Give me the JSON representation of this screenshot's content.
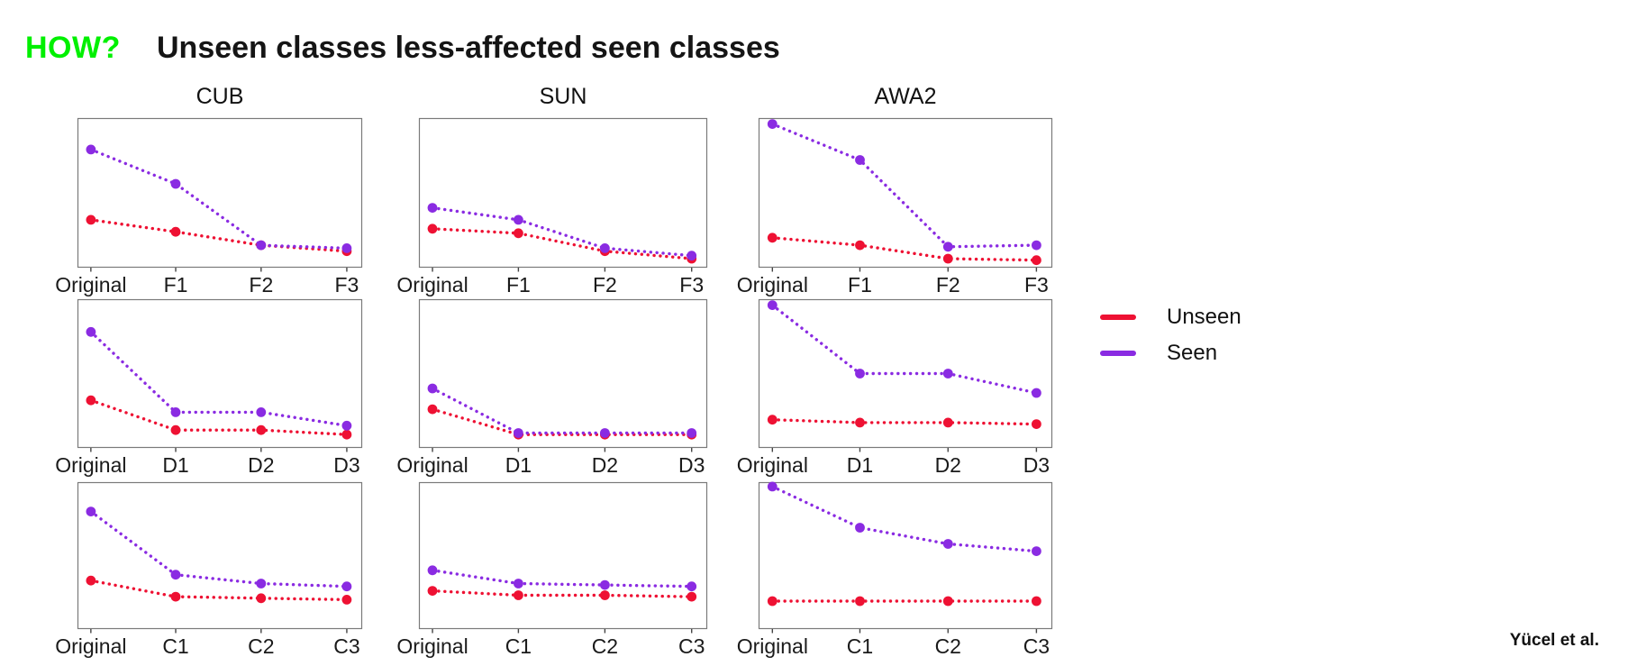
{
  "slide": {
    "how_label": "HOW?",
    "title": "Unseen classes less-affected seen classes",
    "attribution": "Yücel et al.",
    "accent_green": "#00f000",
    "text_color": "#151515"
  },
  "legend": {
    "position": "right of grid",
    "items": [
      {
        "label": "Unseen",
        "color": "#ee1133"
      },
      {
        "label": "Seen",
        "color": "#8a2be2"
      }
    ]
  },
  "chart_data": [
    {
      "type": "line",
      "style": "dotted with circle markers",
      "dataset": "CUB",
      "variant": "F",
      "title": "CUB",
      "grid": false,
      "ylim": [
        0,
        100
      ],
      "xlabel": "",
      "ylabel": "",
      "categories": [
        "Original",
        "F1",
        "F2",
        "F3"
      ],
      "series": [
        {
          "name": "Unseen",
          "color": "#ee1133",
          "values": [
            32,
            24,
            15,
            11
          ]
        },
        {
          "name": "Seen",
          "color": "#8a2be2",
          "values": [
            79,
            56,
            15,
            13
          ]
        }
      ]
    },
    {
      "type": "line",
      "style": "dotted with circle markers",
      "dataset": "SUN",
      "variant": "F",
      "title": "SUN",
      "grid": false,
      "ylim": [
        0,
        100
      ],
      "xlabel": "",
      "ylabel": "",
      "categories": [
        "Original",
        "F1",
        "F2",
        "F3"
      ],
      "series": [
        {
          "name": "Unseen",
          "color": "#ee1133",
          "values": [
            26,
            23,
            11,
            6
          ]
        },
        {
          "name": "Seen",
          "color": "#8a2be2",
          "values": [
            40,
            32,
            13,
            8
          ]
        }
      ]
    },
    {
      "type": "line",
      "style": "dotted with circle markers",
      "dataset": "AWA2",
      "variant": "F",
      "title": "AWA2",
      "grid": false,
      "ylim": [
        0,
        100
      ],
      "xlabel": "",
      "ylabel": "",
      "categories": [
        "Original",
        "F1",
        "F2",
        "F3"
      ],
      "series": [
        {
          "name": "Unseen",
          "color": "#ee1133",
          "values": [
            20,
            15,
            6,
            5
          ]
        },
        {
          "name": "Seen",
          "color": "#8a2be2",
          "values": [
            96,
            72,
            14,
            15
          ]
        }
      ]
    },
    {
      "type": "line",
      "style": "dotted with circle markers",
      "dataset": "CUB",
      "variant": "D",
      "title": "",
      "grid": false,
      "ylim": [
        0,
        100
      ],
      "xlabel": "",
      "ylabel": "",
      "categories": [
        "Original",
        "D1",
        "D2",
        "D3"
      ],
      "series": [
        {
          "name": "Unseen",
          "color": "#ee1133",
          "values": [
            32,
            12,
            12,
            9
          ]
        },
        {
          "name": "Seen",
          "color": "#8a2be2",
          "values": [
            78,
            24,
            24,
            15
          ]
        }
      ]
    },
    {
      "type": "line",
      "style": "dotted with circle markers",
      "dataset": "SUN",
      "variant": "D",
      "title": "",
      "grid": false,
      "ylim": [
        0,
        100
      ],
      "xlabel": "",
      "ylabel": "",
      "categories": [
        "Original",
        "D1",
        "D2",
        "D3"
      ],
      "series": [
        {
          "name": "Unseen",
          "color": "#ee1133",
          "values": [
            26,
            9,
            9,
            9
          ]
        },
        {
          "name": "Seen",
          "color": "#8a2be2",
          "values": [
            40,
            10,
            10,
            10
          ]
        }
      ]
    },
    {
      "type": "line",
      "style": "dotted with circle markers",
      "dataset": "AWA2",
      "variant": "D",
      "title": "",
      "grid": false,
      "ylim": [
        0,
        100
      ],
      "xlabel": "",
      "ylabel": "",
      "categories": [
        "Original",
        "D1",
        "D2",
        "D3"
      ],
      "series": [
        {
          "name": "Unseen",
          "color": "#ee1133",
          "values": [
            19,
            17,
            17,
            16
          ]
        },
        {
          "name": "Seen",
          "color": "#8a2be2",
          "values": [
            96,
            50,
            50,
            37
          ]
        }
      ]
    },
    {
      "type": "line",
      "style": "dotted with circle markers",
      "dataset": "CUB",
      "variant": "C",
      "title": "",
      "grid": false,
      "ylim": [
        0,
        100
      ],
      "xlabel": "",
      "ylabel": "",
      "categories": [
        "Original",
        "C1",
        "C2",
        "C3"
      ],
      "series": [
        {
          "name": "Unseen",
          "color": "#ee1133",
          "values": [
            33,
            22,
            21,
            20
          ]
        },
        {
          "name": "Seen",
          "color": "#8a2be2",
          "values": [
            80,
            37,
            31,
            29
          ]
        }
      ]
    },
    {
      "type": "line",
      "style": "dotted with circle markers",
      "dataset": "SUN",
      "variant": "C",
      "title": "",
      "grid": false,
      "ylim": [
        0,
        100
      ],
      "xlabel": "",
      "ylabel": "",
      "categories": [
        "Original",
        "C1",
        "C2",
        "C3"
      ],
      "series": [
        {
          "name": "Unseen",
          "color": "#ee1133",
          "values": [
            26,
            23,
            23,
            22
          ]
        },
        {
          "name": "Seen",
          "color": "#8a2be2",
          "values": [
            40,
            31,
            30,
            29
          ]
        }
      ]
    },
    {
      "type": "line",
      "style": "dotted with circle markers",
      "dataset": "AWA2",
      "variant": "C",
      "title": "",
      "grid": false,
      "ylim": [
        0,
        100
      ],
      "xlabel": "",
      "ylabel": "",
      "categories": [
        "Original",
        "C1",
        "C2",
        "C3"
      ],
      "series": [
        {
          "name": "Unseen",
          "color": "#ee1133",
          "values": [
            19,
            19,
            19,
            19
          ]
        },
        {
          "name": "Seen",
          "color": "#8a2be2",
          "values": [
            97,
            69,
            58,
            53
          ]
        }
      ]
    }
  ]
}
